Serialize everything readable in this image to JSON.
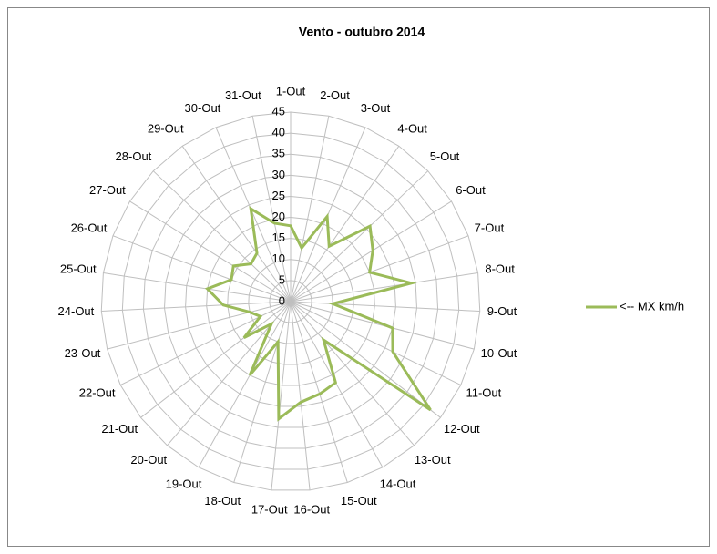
{
  "chart_data": {
    "type": "radar",
    "title": "Vento - outubro 2014",
    "categories": [
      "1-Out",
      "2-Out",
      "3-Out",
      "4-Out",
      "5-Out",
      "6-Out",
      "7-Out",
      "8-Out",
      "9-Out",
      "10-Out",
      "11-Out",
      "12-Out",
      "13-Out",
      "14-Out",
      "15-Out",
      "16-Out",
      "17-Out",
      "18-Out",
      "19-Out",
      "20-Out",
      "21-Out",
      "22-Out",
      "23-Out",
      "24-Out",
      "25-Out",
      "26-Out",
      "27-Out",
      "28-Out",
      "29-Out",
      "30-Out",
      "31-Out"
    ],
    "series": [
      {
        "name": "<-- MX km/h",
        "color": "#9bbb59",
        "values": [
          18,
          13,
          22,
          16,
          26,
          23,
          20,
          29,
          10,
          25,
          27,
          42,
          12,
          22,
          23,
          24,
          28,
          10,
          20,
          7,
          14,
          8,
          10,
          16,
          20,
          15,
          16,
          13,
          14,
          24,
          19
        ]
      }
    ],
    "ylim": [
      0,
      45
    ],
    "yticks": [
      0,
      5,
      10,
      15,
      20,
      25,
      30,
      35,
      40,
      45
    ],
    "grid": true,
    "legend": "right"
  }
}
